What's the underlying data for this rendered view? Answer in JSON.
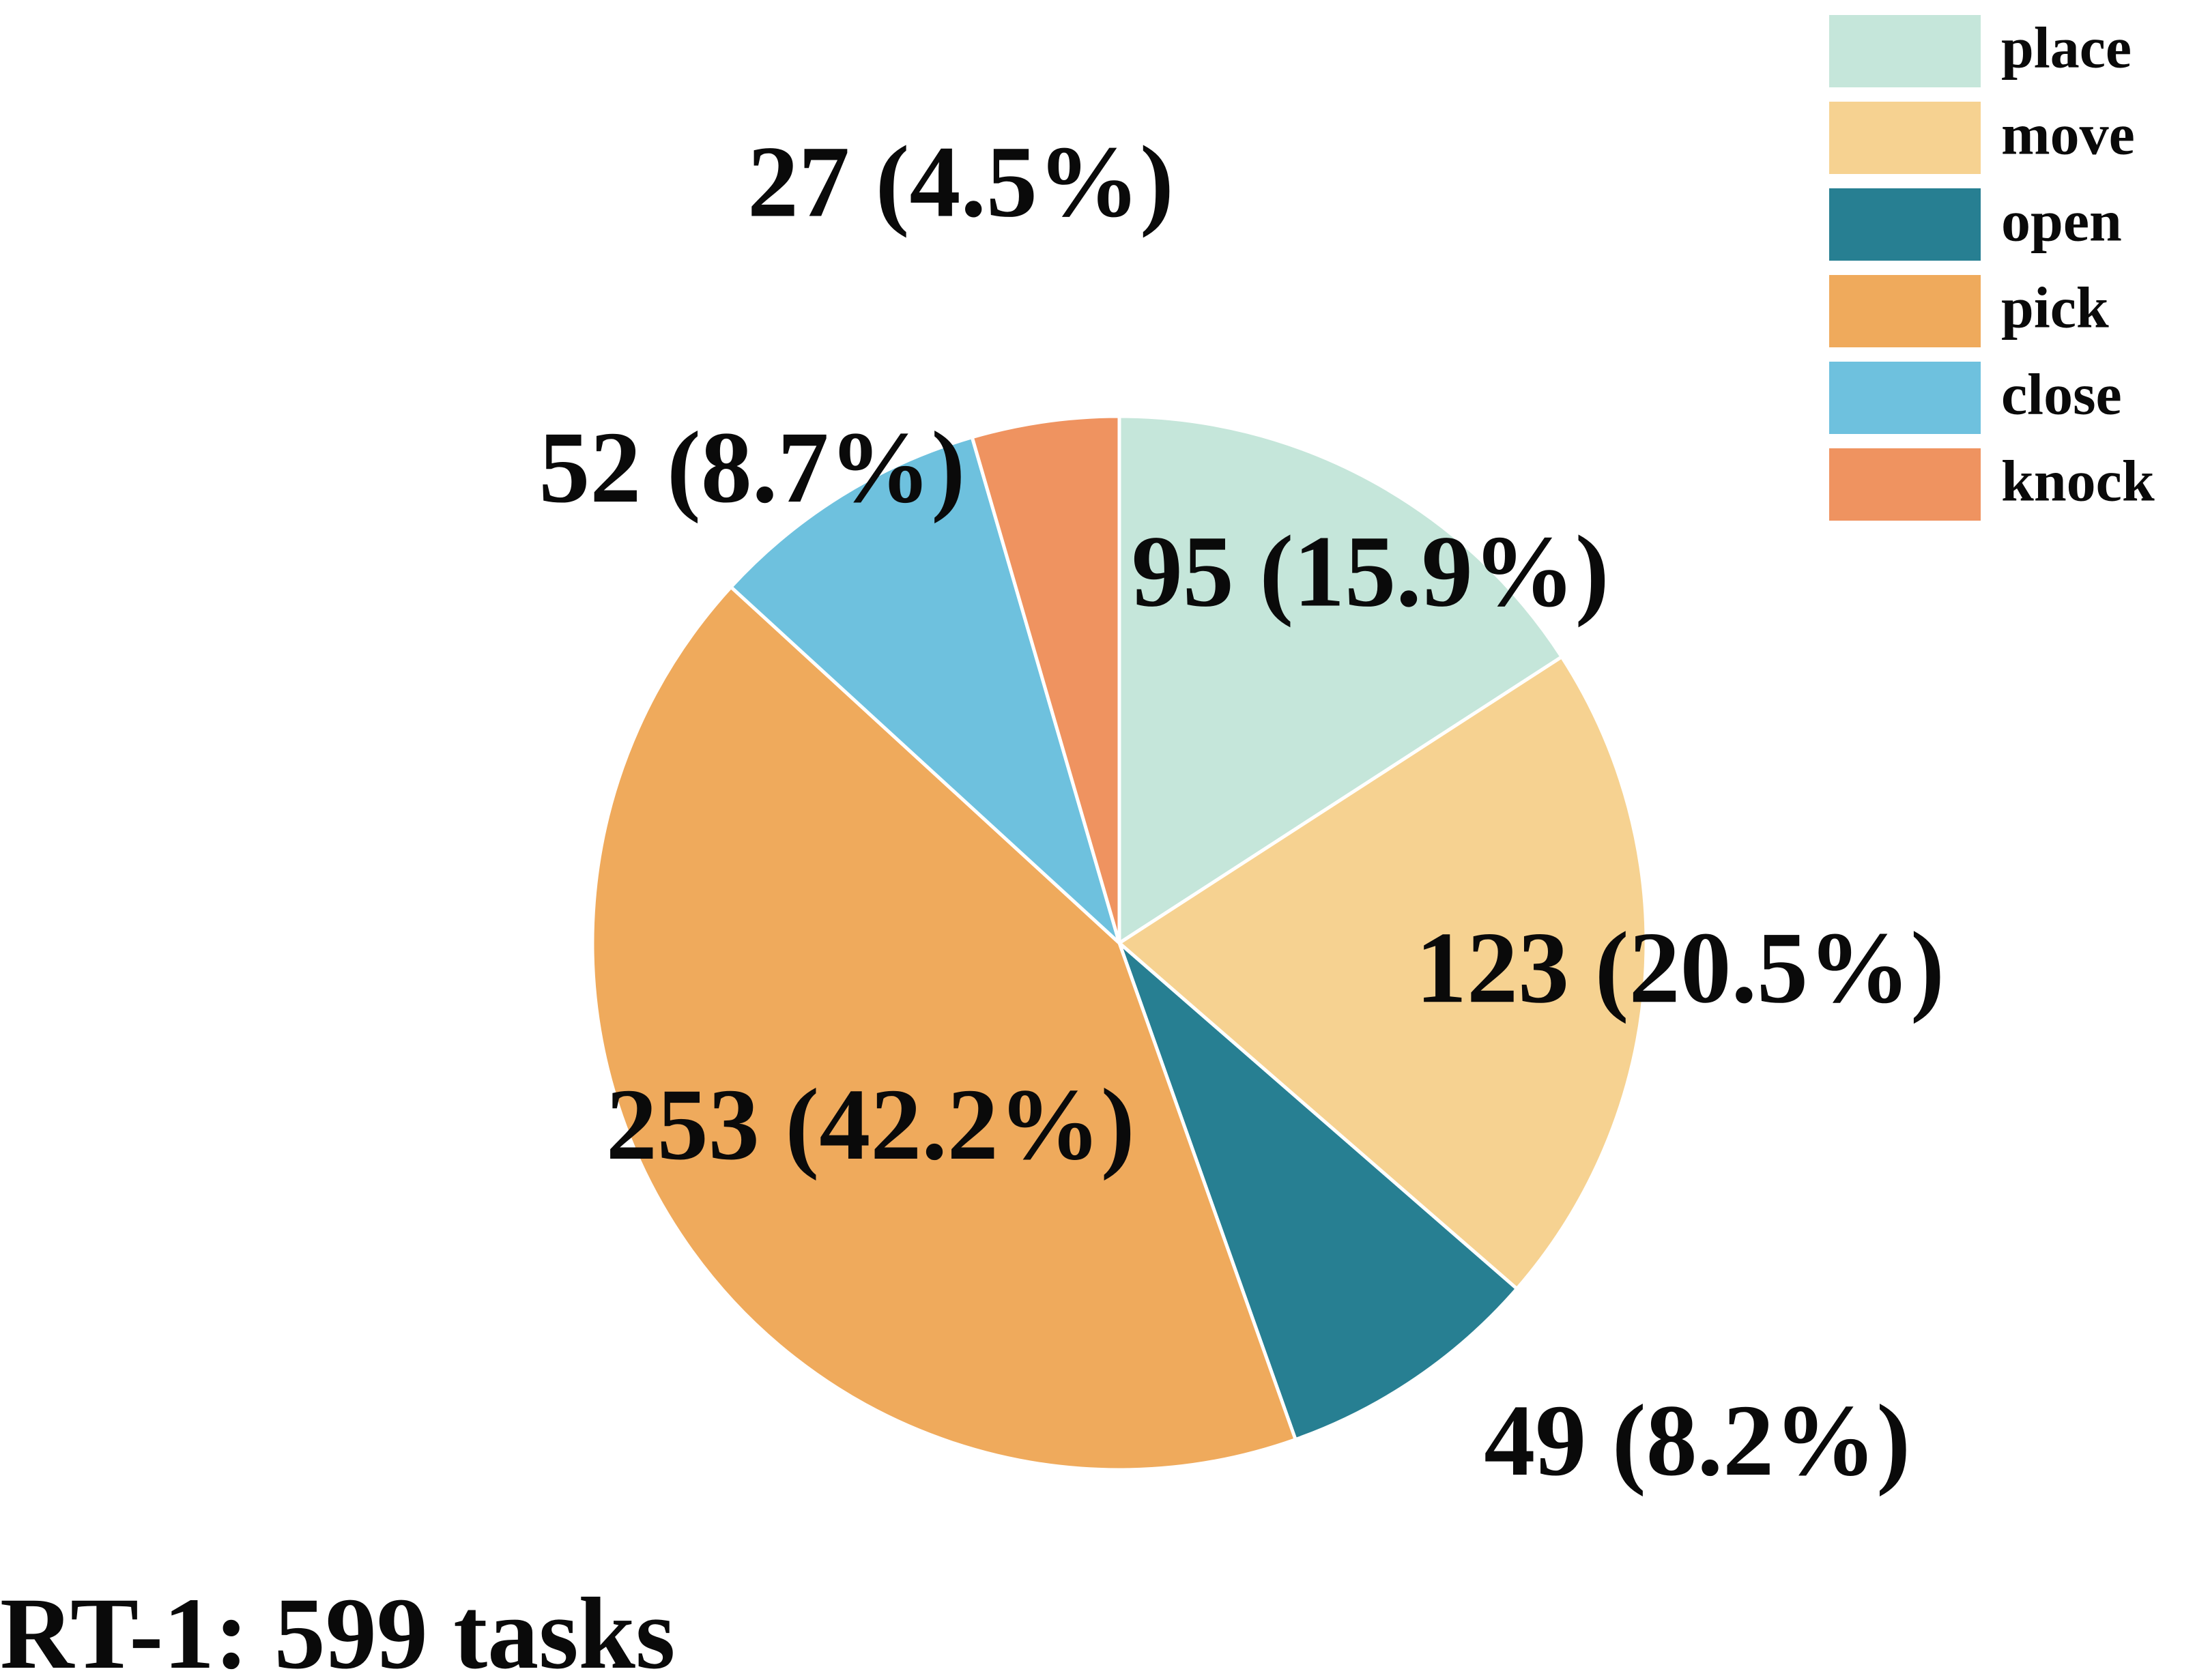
{
  "chart_data": {
    "type": "pie",
    "title": "RT-1: 599 tasks",
    "total": 599,
    "series": [
      {
        "name": "place",
        "value": 95,
        "percent": 15.9,
        "color": "#c5e6da",
        "label": "95 (15.9%)"
      },
      {
        "name": "move",
        "value": 123,
        "percent": 20.5,
        "color": "#f6d291",
        "label": "123 (20.5%)"
      },
      {
        "name": "open",
        "value": 49,
        "percent": 8.2,
        "color": "#277f92",
        "label": "49 (8.2%)"
      },
      {
        "name": "pick",
        "value": 253,
        "percent": 42.2,
        "color": "#efaa5c",
        "label": "253 (42.2%)"
      },
      {
        "name": "close",
        "value": 52,
        "percent": 8.7,
        "color": "#6ec1de",
        "label": "52 (8.7%)"
      },
      {
        "name": "knock",
        "value": 27,
        "percent": 4.5,
        "color": "#ef9360",
        "label": "27 (4.5%)"
      }
    ],
    "start_angle": "top",
    "direction": "clockwise",
    "legend_position": "top-right"
  }
}
